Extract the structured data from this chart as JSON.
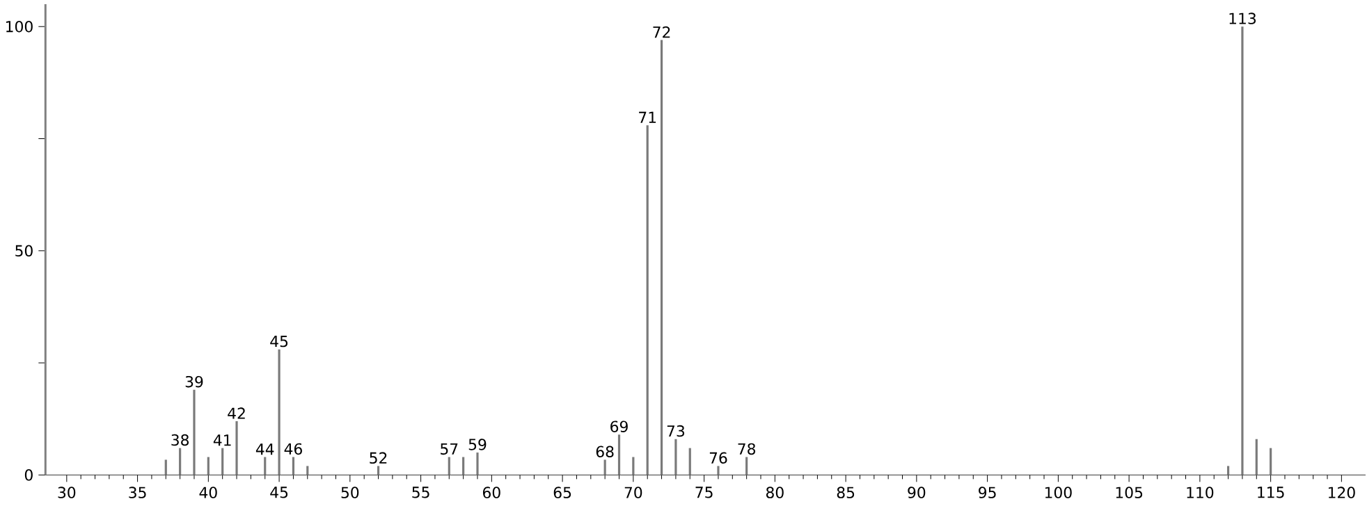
{
  "chart_data": {
    "type": "bar",
    "color": "#7a7a7a",
    "x": [
      37,
      38,
      39,
      40,
      41,
      42,
      44,
      45,
      46,
      47,
      52,
      57,
      58,
      59,
      68,
      69,
      70,
      71,
      72,
      73,
      74,
      76,
      78,
      112,
      113,
      114,
      115
    ],
    "values": [
      3.4,
      6,
      19,
      4,
      6,
      12,
      4,
      28,
      4,
      2,
      2,
      4,
      4,
      5,
      3.4,
      9,
      4,
      78,
      97,
      8,
      6,
      2,
      4,
      2,
      100,
      8,
      6
    ],
    "xlim": [
      28.5,
      121.7
    ],
    "ylim": [
      0,
      105
    ],
    "xticks": [
      30,
      35,
      40,
      45,
      50,
      55,
      60,
      65,
      70,
      75,
      80,
      85,
      90,
      95,
      100,
      105,
      110,
      115,
      120
    ],
    "yticks": [
      0,
      {
        "value": 25,
        "label": null
      },
      50,
      {
        "value": 75,
        "label": null
      },
      100
    ],
    "annotations": [
      {
        "text": "38",
        "x": 38,
        "y": 6
      },
      {
        "text": "39",
        "x": 39,
        "y": 19
      },
      {
        "text": "41",
        "x": 41,
        "y": 6
      },
      {
        "text": "42",
        "x": 42,
        "y": 12
      },
      {
        "text": "44",
        "x": 44,
        "y": 4
      },
      {
        "text": "45",
        "x": 45,
        "y": 28
      },
      {
        "text": "46",
        "x": 46,
        "y": 4
      },
      {
        "text": "52",
        "x": 52,
        "y": 2
      },
      {
        "text": "57",
        "x": 57,
        "y": 4
      },
      {
        "text": "59",
        "x": 59,
        "y": 5
      },
      {
        "text": "68",
        "x": 68,
        "y": 3.4
      },
      {
        "text": "69",
        "x": 69,
        "y": 9
      },
      {
        "text": "71",
        "x": 71,
        "y": 78
      },
      {
        "text": "72",
        "x": 72,
        "y": 97
      },
      {
        "text": "73",
        "x": 73,
        "y": 8
      },
      {
        "text": "76",
        "x": 76,
        "y": 2
      },
      {
        "text": "78",
        "x": 78,
        "y": 4
      },
      {
        "text": "113",
        "x": 113,
        "y": 100
      }
    ],
    "grid": false
  }
}
